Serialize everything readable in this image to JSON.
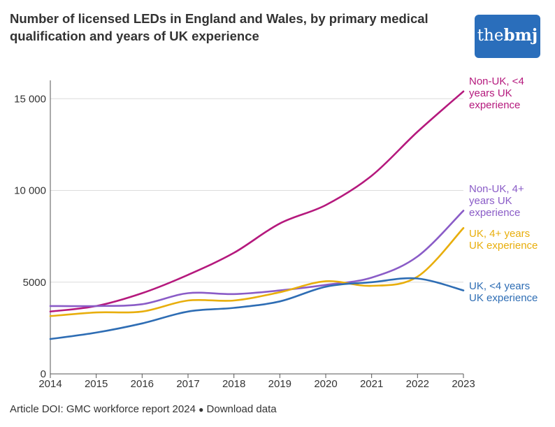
{
  "header": {
    "title": "Number of licensed LEDs in England and Wales, by primary medical qualification and years of UK experience",
    "logo_prefix": "the",
    "logo_suffix": "bmj"
  },
  "footer": {
    "doi_text": "Article DOI: GMC workforce report 2024",
    "separator": "●",
    "download_label": "Download data"
  },
  "chart_data": {
    "type": "line",
    "title": "Number of licensed LEDs in England and Wales, by primary medical qualification and years of UK experience",
    "xlabel": "",
    "ylabel": "",
    "x": [
      2014,
      2015,
      2016,
      2017,
      2018,
      2019,
      2020,
      2021,
      2022,
      2023
    ],
    "ylim": [
      0,
      16000
    ],
    "yticks": [
      0,
      5000,
      10000,
      15000
    ],
    "ytick_labels": [
      "0",
      "5000",
      "10 000",
      "15 000"
    ],
    "xtick_labels": [
      "2014",
      "2015",
      "2016",
      "2017",
      "2018",
      "2019",
      "2020",
      "2021",
      "2022",
      "2023"
    ],
    "grid": true,
    "series": [
      {
        "name": "Non-UK, <4 years UK experience",
        "label_lines": [
          "Non-UK, <4",
          "years UK",
          "experience"
        ],
        "color": "#b5197d",
        "values": [
          3400,
          3700,
          4400,
          5400,
          6600,
          8200,
          9200,
          10800,
          13200,
          15400
        ]
      },
      {
        "name": "Non-UK, 4+ years UK experience",
        "label_lines": [
          "Non-UK, 4+",
          "years UK",
          "experience"
        ],
        "color": "#8a5cc7",
        "values": [
          3700,
          3700,
          3800,
          4400,
          4350,
          4550,
          4850,
          5250,
          6400,
          8900
        ]
      },
      {
        "name": "UK, 4+ years UK experience",
        "label_lines": [
          "UK, 4+ years",
          "UK experience"
        ],
        "color": "#e8ae0c",
        "values": [
          3150,
          3350,
          3400,
          4000,
          4000,
          4450,
          5050,
          4800,
          5300,
          7950
        ]
      },
      {
        "name": "UK, <4 years UK experience",
        "label_lines": [
          "UK, <4 years",
          "UK experience"
        ],
        "color": "#2e6db4",
        "values": [
          1900,
          2250,
          2750,
          3400,
          3600,
          3950,
          4750,
          5000,
          5200,
          4550
        ]
      }
    ]
  }
}
